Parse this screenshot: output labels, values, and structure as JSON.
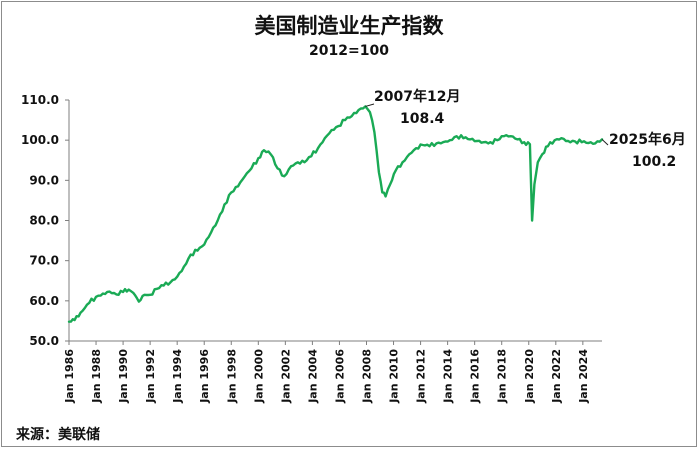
{
  "title": "美国制造业生产指数",
  "subtitle": "2012=100",
  "source": "来源：美联储",
  "colors": {
    "series": "#1aaa55",
    "axis": "#7f7f7f",
    "text": "#111111"
  },
  "chart_data": {
    "type": "line",
    "title": "美国制造业生产指数",
    "subtitle": "2012=100",
    "xlabel": "",
    "ylabel": "",
    "xlim": [
      "1986-01",
      "2025-06"
    ],
    "ylim": [
      50,
      110
    ],
    "y_ticks": [
      "50.0",
      "60.0",
      "70.0",
      "80.0",
      "90.0",
      "100.0",
      "110.0"
    ],
    "x_ticks": [
      "Jan 1986",
      "Jan 1988",
      "Jan 1990",
      "Jan 1992",
      "Jan 1994",
      "Jan 1996",
      "Jan 1998",
      "Jan 2000",
      "Jan 2002",
      "Jan 2004",
      "Jan 2006",
      "Jan 2008",
      "Jan 2010",
      "Jan 2012",
      "Jan 2014",
      "Jan 2016",
      "Jan 2018",
      "Jan 2020",
      "Jan 2022",
      "Jan 2024"
    ],
    "grid": false,
    "legend": "none",
    "series": [
      {
        "x": [
          "1986-01",
          "1986-06",
          "1987-01",
          "1987-07",
          "1988-01",
          "1988-07",
          "1989-01",
          "1989-07",
          "1990-01",
          "1990-06",
          "1990-10",
          "1991-03",
          "1991-08",
          "1992-01",
          "1992-07",
          "1993-01",
          "1993-07",
          "1994-01",
          "1994-07",
          "1995-01",
          "1995-07",
          "1996-01",
          "1996-07",
          "1997-01",
          "1997-07",
          "1998-01",
          "1998-07",
          "1999-01",
          "1999-07",
          "2000-01",
          "2000-06",
          "2000-12",
          "2001-06",
          "2001-12",
          "2002-06",
          "2002-12",
          "2003-06",
          "2003-12",
          "2004-06",
          "2004-12",
          "2005-06",
          "2005-12",
          "2006-06",
          "2006-12",
          "2007-06",
          "2007-12",
          "2008-04",
          "2008-08",
          "2008-12",
          "2009-03",
          "2009-06",
          "2009-10",
          "2010-03",
          "2010-09",
          "2011-03",
          "2011-09",
          "2012-03",
          "2012-09",
          "2013-03",
          "2013-09",
          "2014-03",
          "2014-09",
          "2015-03",
          "2015-09",
          "2016-03",
          "2016-09",
          "2017-03",
          "2017-09",
          "2018-03",
          "2018-09",
          "2019-03",
          "2019-09",
          "2020-02",
          "2020-04",
          "2020-06",
          "2020-09",
          "2021-01",
          "2021-06",
          "2021-12",
          "2022-06",
          "2022-12",
          "2023-06",
          "2023-12",
          "2024-06",
          "2024-12",
          "2025-06"
        ],
        "values": [
          54.8,
          55.2,
          57.5,
          59.5,
          61.0,
          61.8,
          62.3,
          61.6,
          62.2,
          62.8,
          62.0,
          59.8,
          61.5,
          61.5,
          63.0,
          63.8,
          64.6,
          66.0,
          68.5,
          71.5,
          72.5,
          74.0,
          77.0,
          80.0,
          84.0,
          87.0,
          88.5,
          91.0,
          93.0,
          95.5,
          97.5,
          96.5,
          93.0,
          91.0,
          93.5,
          94.5,
          94.5,
          96.0,
          98.0,
          100.5,
          102.5,
          103.5,
          105.0,
          106.0,
          107.5,
          108.4,
          107.0,
          102.0,
          92.0,
          87.0,
          86.0,
          89.0,
          92.5,
          94.5,
          96.5,
          98.0,
          98.8,
          98.5,
          99.2,
          99.5,
          100.0,
          101.0,
          100.5,
          100.2,
          99.8,
          99.5,
          99.5,
          100.0,
          101.0,
          101.0,
          100.2,
          99.5,
          99.0,
          80.0,
          89.0,
          94.5,
          96.5,
          98.5,
          100.0,
          100.5,
          99.8,
          99.7,
          99.5,
          99.3,
          99.2,
          100.2
        ]
      }
    ],
    "annotations": [
      {
        "date_label": "2007年12月",
        "value_label": "108.4",
        "x": "2007-12",
        "y": 108.4
      },
      {
        "date_label": "2025年6月",
        "value_label": "100.2",
        "x": "2025-06",
        "y": 100.2
      }
    ]
  }
}
